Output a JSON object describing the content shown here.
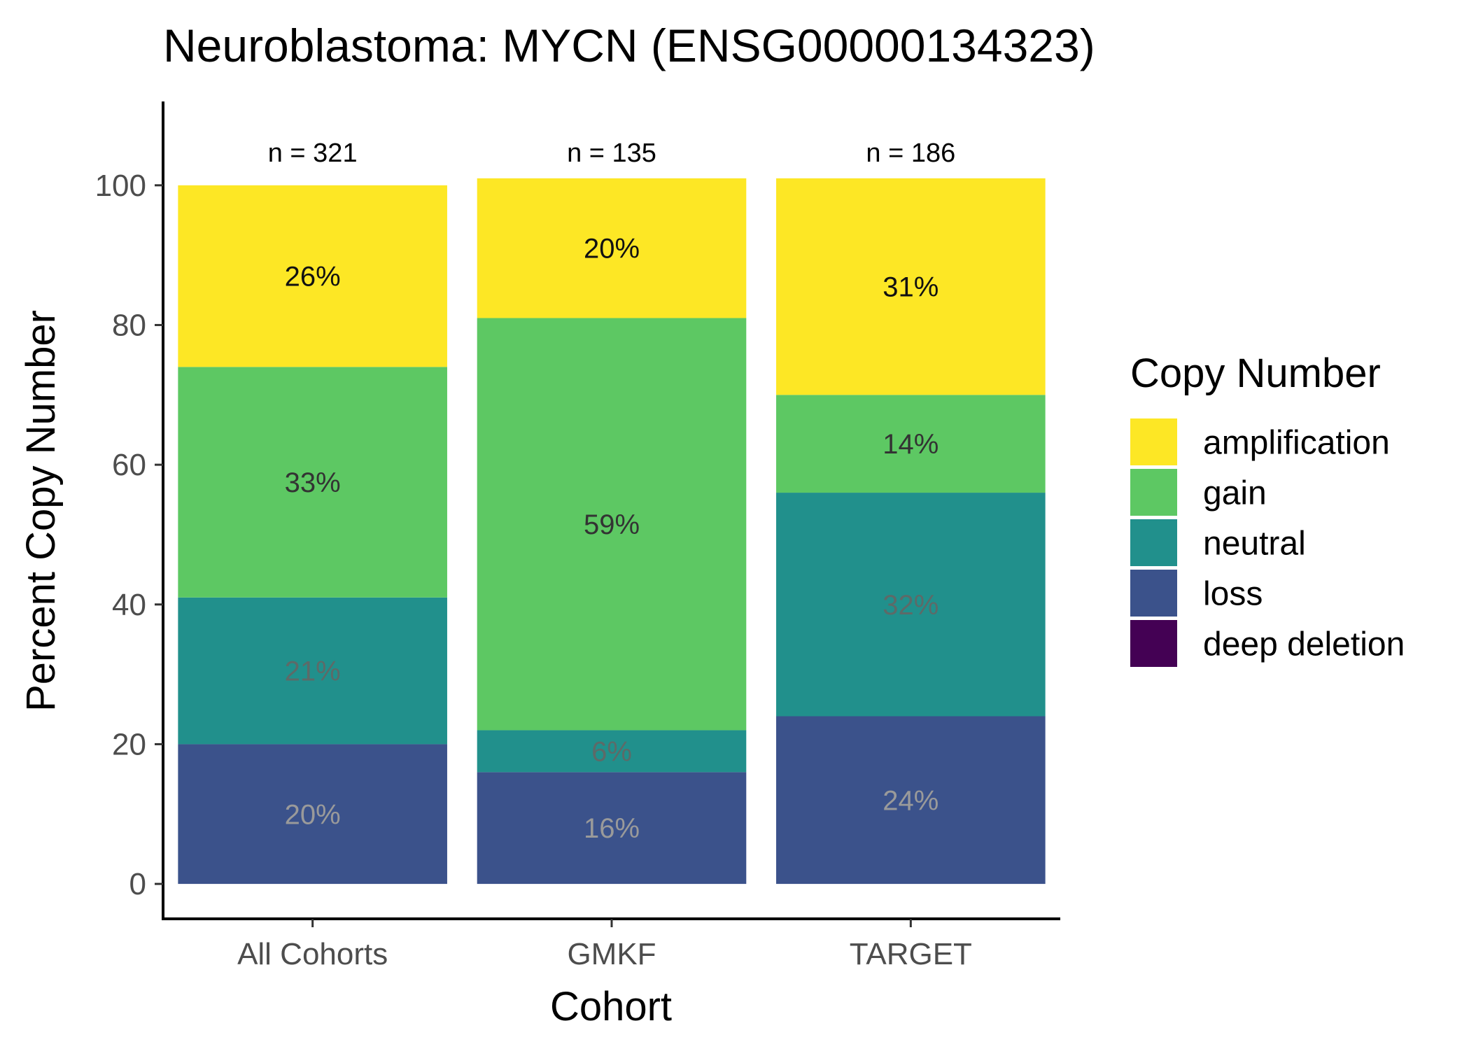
{
  "chart_data": {
    "type": "bar",
    "stacked": true,
    "title": "Neuroblastoma: MYCN (ENSG00000134323)",
    "xlabel": "Cohort",
    "ylabel": "Percent Copy Number",
    "ylim": [
      -5,
      112
    ],
    "y_ticks": [
      "0",
      "20",
      "40",
      "60",
      "80",
      "100"
    ],
    "categories": [
      "All Cohorts",
      "GMKF",
      "TARGET"
    ],
    "n_labels": [
      "n = 321",
      "n = 135",
      "n = 186"
    ],
    "legend_title": "Copy Number",
    "legend_position": "right",
    "grid": false,
    "series": [
      {
        "name": "deep deletion",
        "color": "#440154",
        "values": [
          0,
          0,
          0
        ],
        "labels": [
          "",
          "",
          ""
        ],
        "label_color": "#cccccc"
      },
      {
        "name": "loss",
        "color": "#3b528b",
        "values": [
          20,
          16,
          24
        ],
        "labels": [
          "20%",
          "16%",
          "24%"
        ],
        "label_color": "#9a9a9a"
      },
      {
        "name": "neutral",
        "color": "#21908c",
        "values": [
          21,
          6,
          32
        ],
        "labels": [
          "21%",
          "6%",
          "32%"
        ],
        "label_color": "#5d6a68"
      },
      {
        "name": "gain",
        "color": "#5dc863",
        "values": [
          33,
          59,
          14
        ],
        "labels": [
          "33%",
          "59%",
          "14%"
        ],
        "label_color": "#333333"
      },
      {
        "name": "amplification",
        "color": "#fde725",
        "values": [
          26,
          20,
          31
        ],
        "labels": [
          "26%",
          "20%",
          "31%"
        ],
        "label_color": "#111111"
      }
    ],
    "legend_order": [
      "amplification",
      "gain",
      "neutral",
      "loss",
      "deep deletion"
    ]
  }
}
